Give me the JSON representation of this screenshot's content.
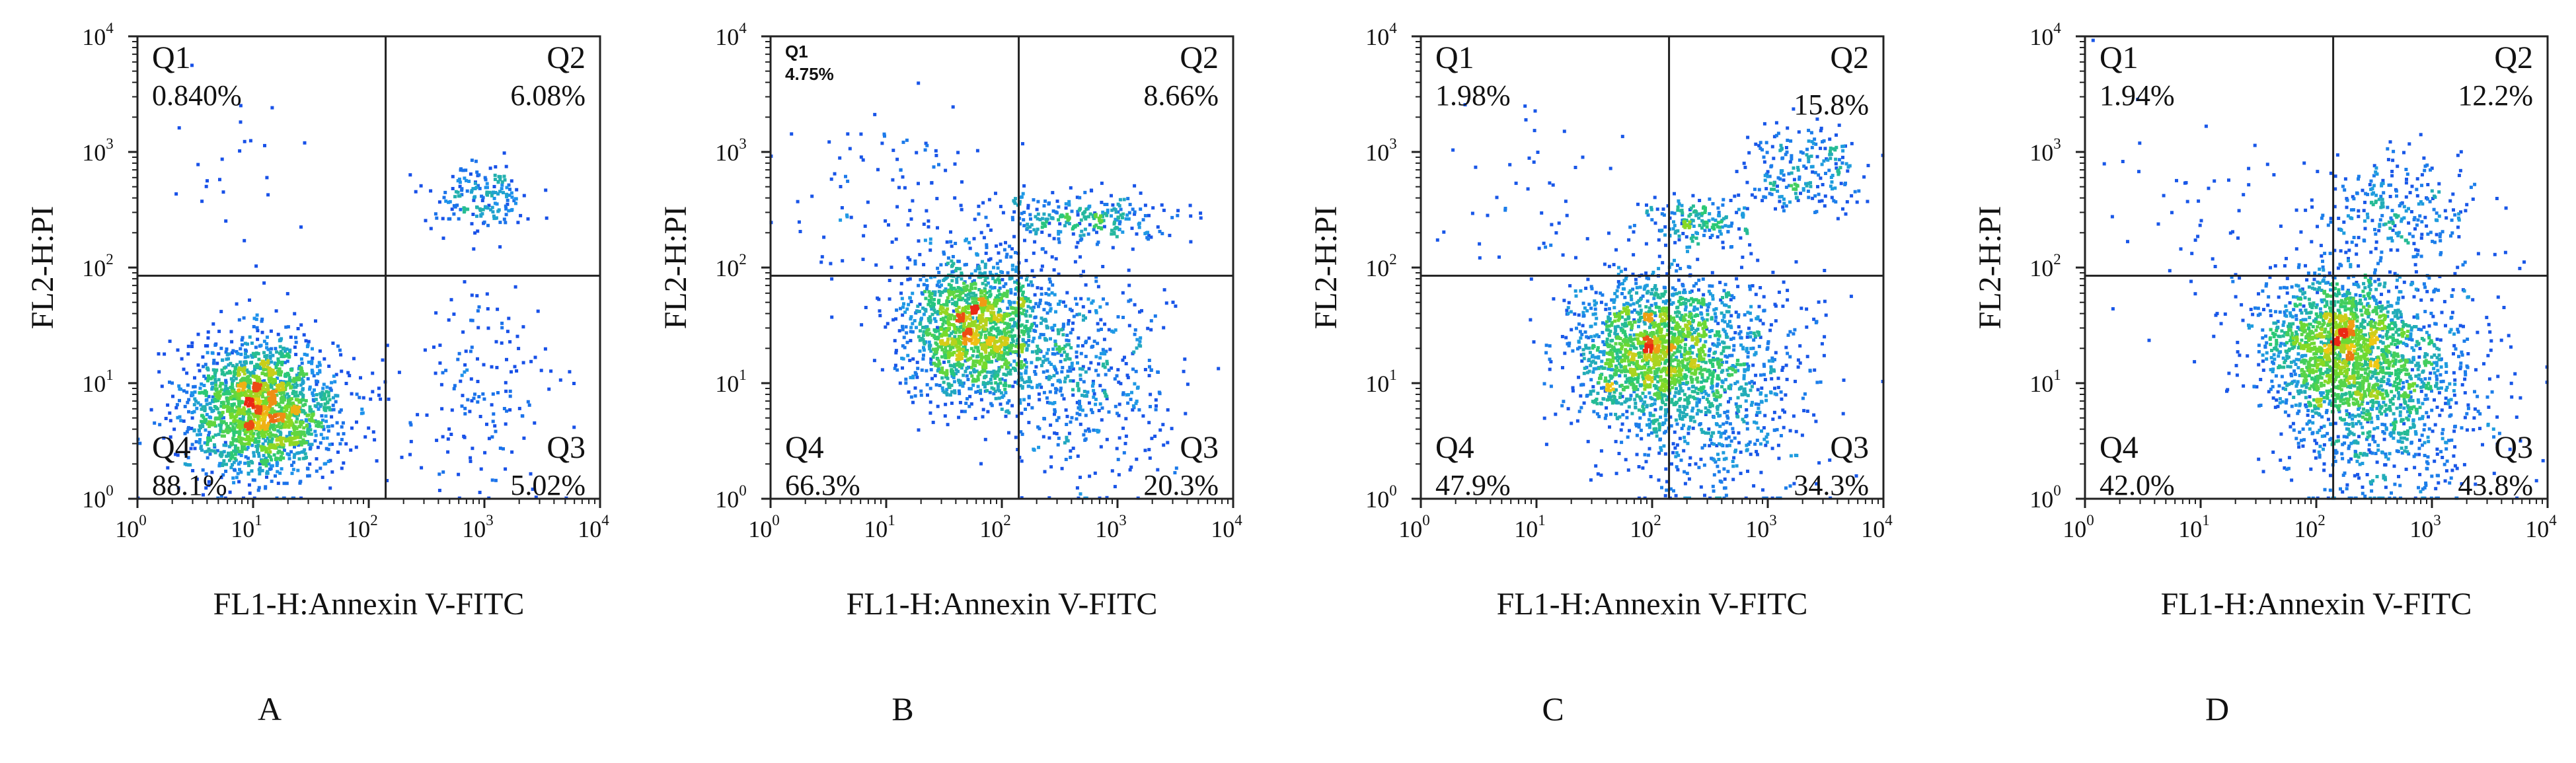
{
  "chart_data": [
    {
      "type": "scatter",
      "panel_label": "A",
      "xlabel": "FL1-H:Annexin V-FITC",
      "ylabel": "FL2-H:PI",
      "xscale": "log",
      "yscale": "log",
      "xlim": [
        1,
        10000
      ],
      "ylim": [
        1,
        10000
      ],
      "gate": {
        "x": 140,
        "y": 85
      },
      "x_ticks": [
        {
          "base": "10",
          "exp": "0"
        },
        {
          "base": "10",
          "exp": "1"
        },
        {
          "base": "10",
          "exp": "2"
        },
        {
          "base": "10",
          "exp": "3"
        },
        {
          "base": "10",
          "exp": "4"
        }
      ],
      "y_ticks": [
        {
          "base": "10",
          "exp": "0"
        },
        {
          "base": "10",
          "exp": "1"
        },
        {
          "base": "10",
          "exp": "2"
        },
        {
          "base": "10",
          "exp": "3"
        },
        {
          "base": "10",
          "exp": "4"
        }
      ],
      "quadrants": [
        {
          "name": "Q1",
          "percent": "0.840%"
        },
        {
          "name": "Q2",
          "percent": "6.08%"
        },
        {
          "name": "Q3",
          "percent": "5.02%"
        },
        {
          "name": "Q4",
          "percent": "88.1%"
        }
      ],
      "populations": [
        {
          "x": 12,
          "y": 6,
          "sx": 0.33,
          "sy": 0.3,
          "n": 1900
        },
        {
          "x": 900,
          "y": 400,
          "sx": 0.22,
          "sy": 0.15,
          "n": 170
        },
        {
          "x": 900,
          "y": 8,
          "sx": 0.35,
          "sy": 0.45,
          "n": 160
        },
        {
          "x": 8,
          "y": 600,
          "sx": 0.45,
          "sy": 0.45,
          "n": 25
        }
      ]
    },
    {
      "type": "scatter",
      "panel_label": "B",
      "xlabel": "FL1-H:Annexin V-FITC",
      "ylabel": "FL2-H:PI",
      "xscale": "log",
      "yscale": "log",
      "xlim": [
        1,
        10000
      ],
      "ylim": [
        1,
        10000
      ],
      "gate": {
        "x": 140,
        "y": 85
      },
      "x_ticks": [
        {
          "base": "10",
          "exp": "0"
        },
        {
          "base": "10",
          "exp": "1"
        },
        {
          "base": "10",
          "exp": "2"
        },
        {
          "base": "10",
          "exp": "3"
        },
        {
          "base": "10",
          "exp": "4"
        }
      ],
      "y_ticks": [
        {
          "base": "10",
          "exp": "0"
        },
        {
          "base": "10",
          "exp": "1"
        },
        {
          "base": "10",
          "exp": "2"
        },
        {
          "base": "10",
          "exp": "3"
        },
        {
          "base": "10",
          "exp": "4"
        }
      ],
      "quadrants": [
        {
          "name": "Q1",
          "percent": "4.75%"
        },
        {
          "name": "Q2",
          "percent": "8.66%"
        },
        {
          "name": "Q3",
          "percent": "20.3%"
        },
        {
          "name": "Q4",
          "percent": "66.3%"
        }
      ],
      "populations": [
        {
          "x": 60,
          "y": 30,
          "sx": 0.3,
          "sy": 0.3,
          "n": 1600
        },
        {
          "x": 500,
          "y": 270,
          "sx": 0.4,
          "sy": 0.1,
          "n": 260
        },
        {
          "x": 500,
          "y": 12,
          "sx": 0.38,
          "sy": 0.45,
          "n": 480
        },
        {
          "x": 12,
          "y": 300,
          "sx": 0.45,
          "sy": 0.45,
          "n": 110
        }
      ]
    },
    {
      "type": "scatter",
      "panel_label": "C",
      "xlabel": "FL1-H:Annexin V-FITC",
      "ylabel": "FL2-H:PI",
      "xscale": "log",
      "yscale": "log",
      "xlim": [
        1,
        10000
      ],
      "ylim": [
        1,
        10000
      ],
      "gate": {
        "x": 140,
        "y": 85
      },
      "x_ticks": [
        {
          "base": "10",
          "exp": "0"
        },
        {
          "base": "10",
          "exp": "1"
        },
        {
          "base": "10",
          "exp": "2"
        },
        {
          "base": "10",
          "exp": "3"
        },
        {
          "base": "10",
          "exp": "4"
        }
      ],
      "y_ticks": [
        {
          "base": "10",
          "exp": "0"
        },
        {
          "base": "10",
          "exp": "1"
        },
        {
          "base": "10",
          "exp": "2"
        },
        {
          "base": "10",
          "exp": "3"
        },
        {
          "base": "10",
          "exp": "4"
        }
      ],
      "quadrants": [
        {
          "name": "Q1",
          "percent": "1.98%"
        },
        {
          "name": "Q2",
          "percent": "15.8%"
        },
        {
          "name": "Q3",
          "percent": "34.3%"
        },
        {
          "name": "Q4",
          "percent": "47.9%"
        }
      ],
      "populations": [
        {
          "x": 100,
          "y": 18,
          "sx": 0.35,
          "sy": 0.33,
          "n": 1500
        },
        {
          "x": 350,
          "y": 10,
          "sx": 0.45,
          "sy": 0.5,
          "n": 700
        },
        {
          "x": 2000,
          "y": 700,
          "sx": 0.25,
          "sy": 0.18,
          "n": 220
        },
        {
          "x": 250,
          "y": 250,
          "sx": 0.22,
          "sy": 0.1,
          "n": 160
        },
        {
          "x": 10,
          "y": 300,
          "sx": 0.45,
          "sy": 0.45,
          "n": 50
        }
      ]
    },
    {
      "type": "scatter",
      "panel_label": "D",
      "xlabel": "FL1-H:Annexin V-FITC",
      "ylabel": "FL2-H:PI",
      "xscale": "log",
      "yscale": "log",
      "xlim": [
        1,
        10000
      ],
      "ylim": [
        1,
        10000
      ],
      "gate": {
        "x": 140,
        "y": 85
      },
      "x_ticks": [
        {
          "base": "10",
          "exp": "0"
        },
        {
          "base": "10",
          "exp": "1"
        },
        {
          "base": "10",
          "exp": "2"
        },
        {
          "base": "10",
          "exp": "3"
        },
        {
          "base": "10",
          "exp": "4"
        }
      ],
      "y_ticks": [
        {
          "base": "10",
          "exp": "0"
        },
        {
          "base": "10",
          "exp": "1"
        },
        {
          "base": "10",
          "exp": "2"
        },
        {
          "base": "10",
          "exp": "3"
        },
        {
          "base": "10",
          "exp": "4"
        }
      ],
      "quadrants": [
        {
          "name": "Q1",
          "percent": "1.94%"
        },
        {
          "name": "Q2",
          "percent": "12.2%"
        },
        {
          "name": "Q3",
          "percent": "43.8%"
        },
        {
          "name": "Q4",
          "percent": "42.0%"
        }
      ],
      "populations": [
        {
          "x": 150,
          "y": 20,
          "sx": 0.35,
          "sy": 0.33,
          "n": 1500
        },
        {
          "x": 400,
          "y": 8,
          "sx": 0.45,
          "sy": 0.5,
          "n": 900
        },
        {
          "x": 500,
          "y": 300,
          "sx": 0.35,
          "sy": 0.25,
          "n": 260
        },
        {
          "x": 10,
          "y": 250,
          "sx": 0.45,
          "sy": 0.45,
          "n": 55
        }
      ]
    }
  ]
}
